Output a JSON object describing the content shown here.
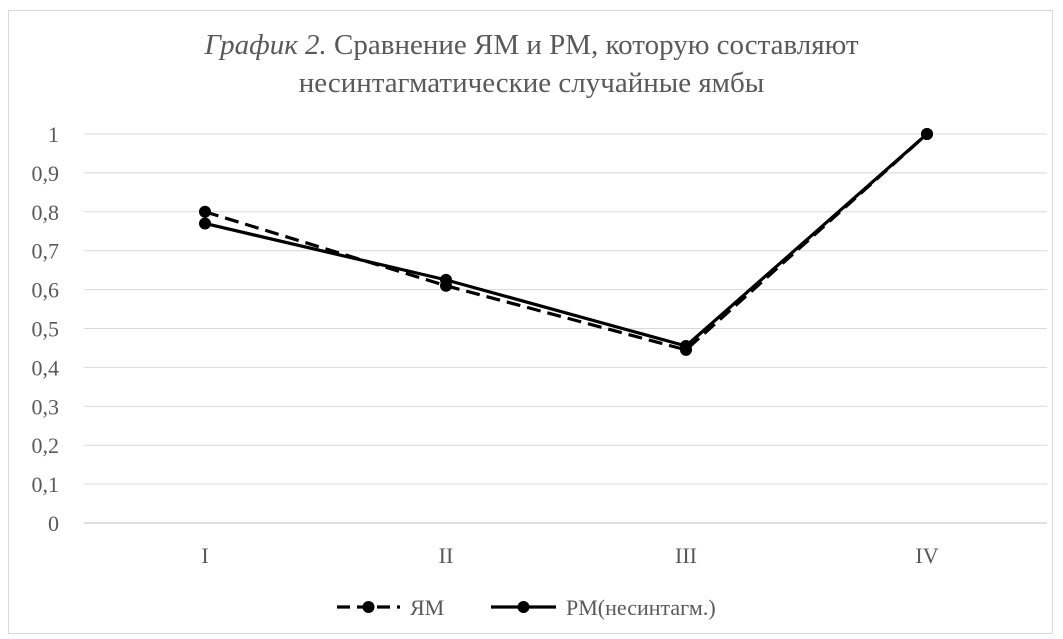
{
  "chart_data": {
    "type": "line",
    "title_lead": "График 2.",
    "title_rest": " Сравнение ЯМ и РМ, которую составляют",
    "title_line2": "несинтагматические случайные ямбы",
    "categories": [
      "I",
      "II",
      "III",
      "IV"
    ],
    "y_ticks": [
      "0",
      "0,1",
      "0,2",
      "0,3",
      "0,4",
      "0,5",
      "0,6",
      "0,7",
      "0,8",
      "0,9",
      "1"
    ],
    "ylim": [
      0,
      1
    ],
    "grid": true,
    "legend_position": "bottom",
    "series": [
      {
        "name": "ЯМ",
        "values": [
          0.8,
          0.61,
          0.445,
          1.0
        ],
        "line_style": "dashed",
        "color": "#000000"
      },
      {
        "name": "РМ(несинтагм.)",
        "values": [
          0.77,
          0.625,
          0.455,
          1.0
        ],
        "line_style": "solid",
        "color": "#000000"
      }
    ]
  }
}
